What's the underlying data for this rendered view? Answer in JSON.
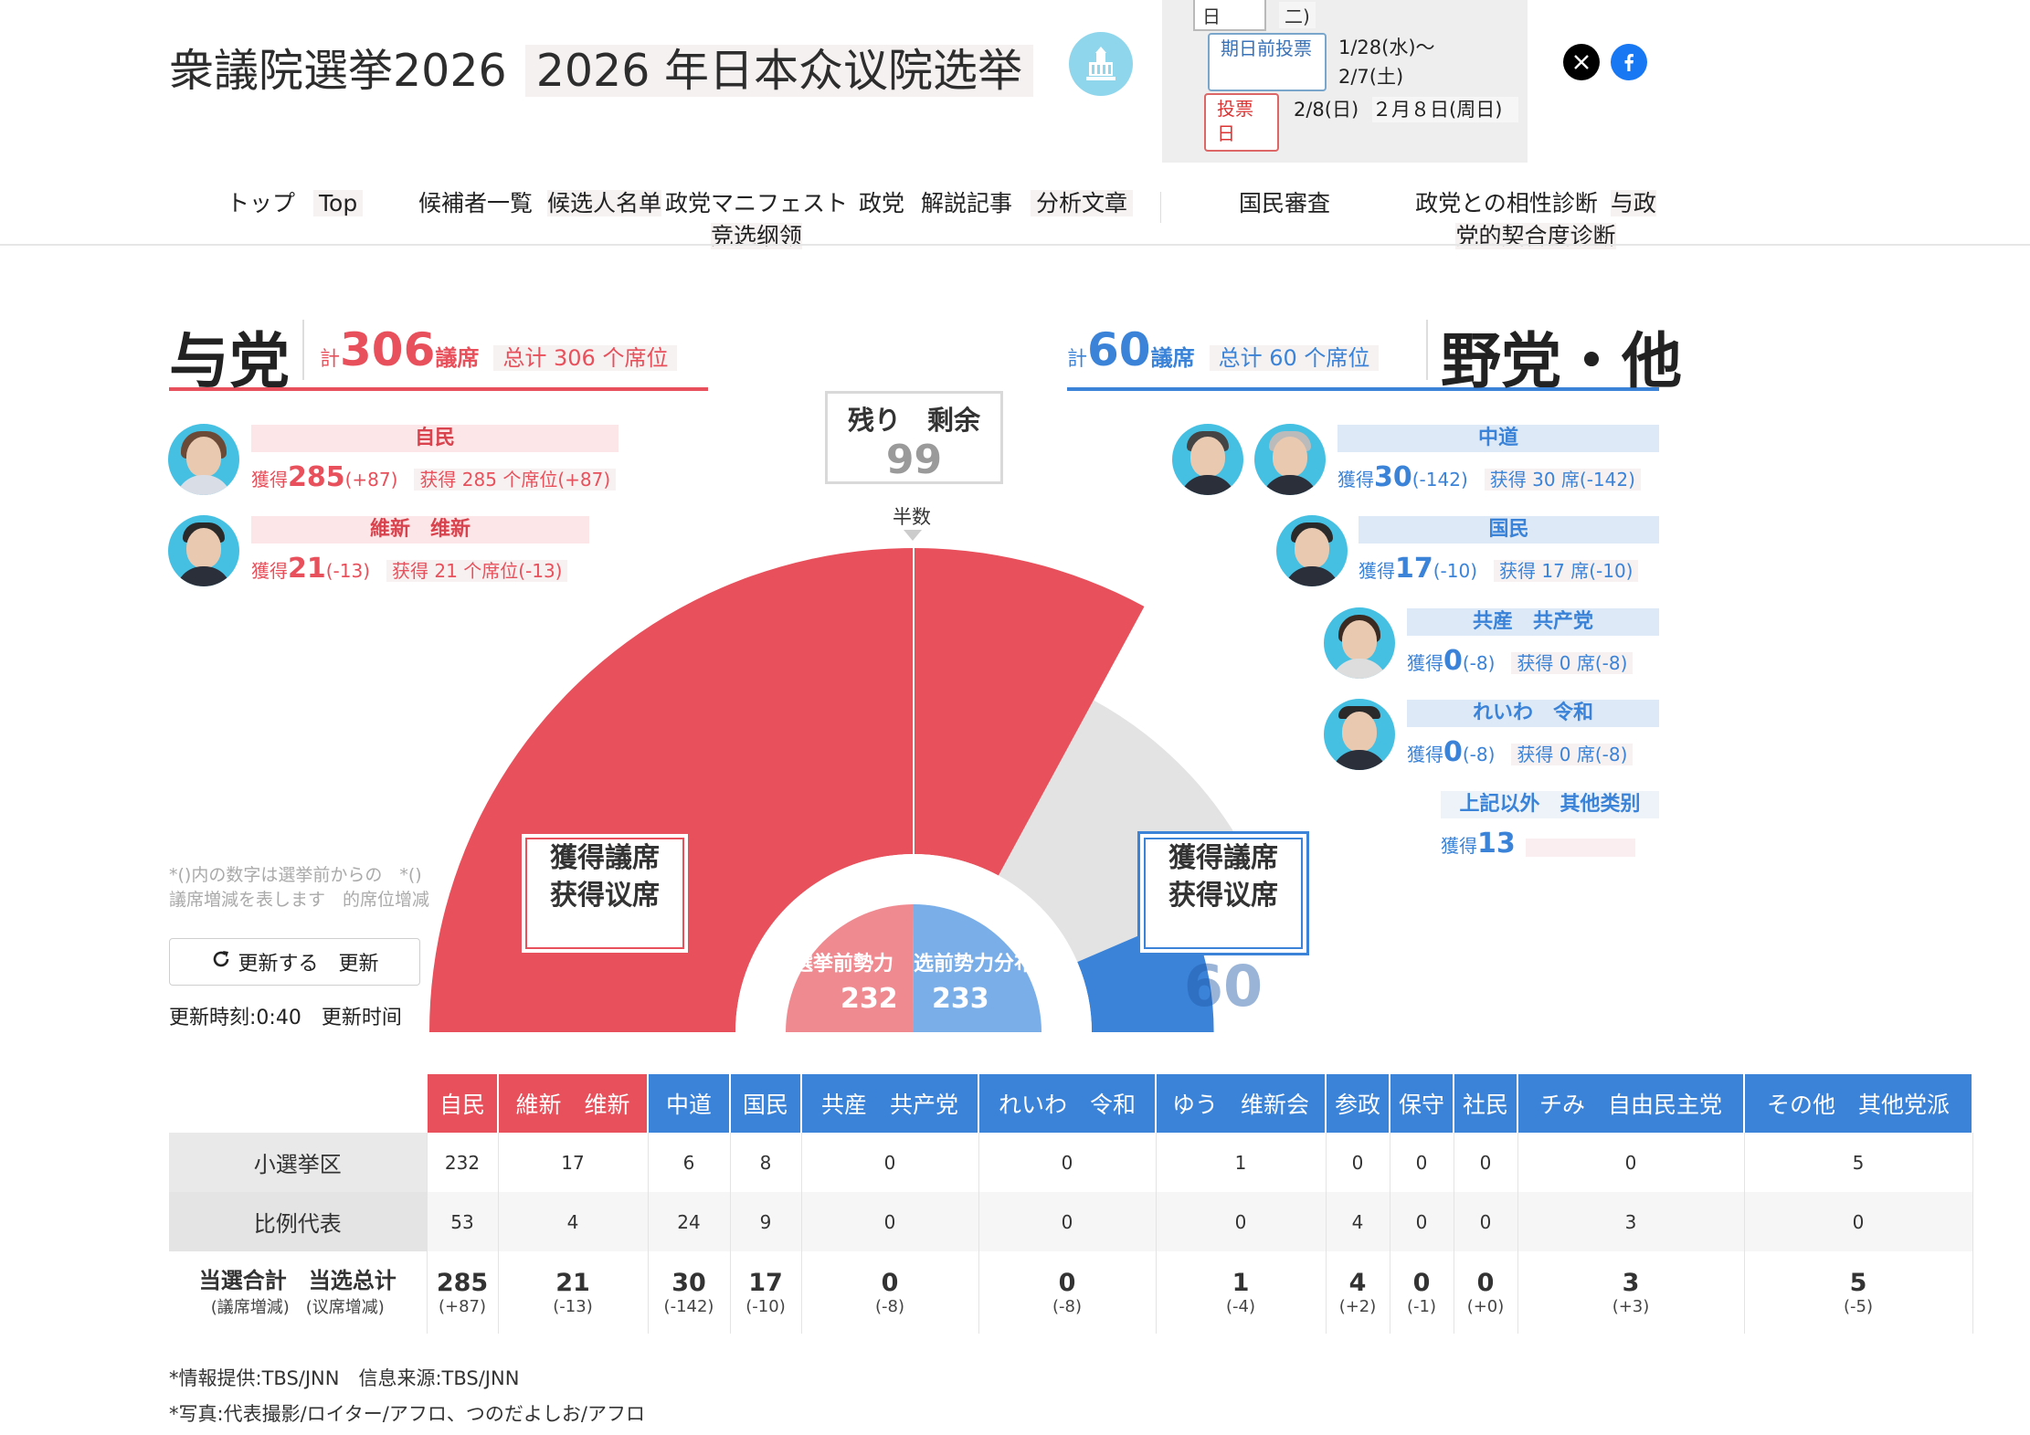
{
  "header": {
    "title_ja": "衆議院選挙2026",
    "title_cn": "2026 年日本众议院选举",
    "icon": "diet-building-icon"
  },
  "schedule": {
    "cut_top_left": "日",
    "cut_top_right": "二)",
    "early_vote_label": "期日前投票",
    "early_vote_dates": [
      "1/28(水)〜",
      "2/7(土)"
    ],
    "vote_day_label": "投票日",
    "vote_day_date": "2/8(日)",
    "vote_day_cn": "２月８日(周日)"
  },
  "social": [
    "x-icon",
    "facebook-icon"
  ],
  "nav": {
    "items": [
      {
        "ja": "トップ",
        "cn": "Top"
      },
      {
        "ja": "候補者一覧",
        "cn": "候选人名单"
      },
      {
        "ja": "政党マニフェスト",
        "cn": "竞选纲领"
      },
      {
        "ja": "政党",
        "cn": ""
      },
      {
        "ja": "解説記事",
        "cn": "分析文章"
      },
      {
        "ja": "国民審査",
        "cn": ""
      },
      {
        "ja": "政党との相性診断",
        "cn": "与政党的契合度诊断"
      }
    ]
  },
  "ruling": {
    "title": "与党",
    "total_prefix": "計",
    "total": "306",
    "total_suffix": "議席",
    "total_cn": "总计 306 个席位",
    "parties": [
      {
        "name": "自民",
        "gain_prefix": "獲得",
        "gain": "285",
        "delta": "(+87)",
        "gain_cn": "获得 285 个席位(+87)"
      },
      {
        "name": "維新　维新",
        "gain_prefix": "獲得",
        "gain": "21",
        "delta": "(-13)",
        "gain_cn": "获得 21 个席位(-13)"
      }
    ]
  },
  "opposition": {
    "title": "野党・他",
    "total_prefix": "計",
    "total": "60",
    "total_suffix": "議席",
    "total_cn": "总计 60 个席位",
    "parties": [
      {
        "name": "中道",
        "gain_prefix": "獲得",
        "gain": "30",
        "delta": "(-142)",
        "gain_cn": "获得 30 席(-142)"
      },
      {
        "name": "国民",
        "gain_prefix": "獲得",
        "gain": "17",
        "delta": "(-10)",
        "gain_cn": "获得 17 席(-10)"
      },
      {
        "name": "共産　共产党",
        "gain_prefix": "獲得",
        "gain": "0",
        "delta": "(-8)",
        "gain_cn": "获得 0 席(-8)"
      },
      {
        "name": "れいわ　令和",
        "gain_prefix": "獲得",
        "gain": "0",
        "delta": "(-8)",
        "gain_cn": "获得 0 席(-8)"
      }
    ],
    "others_label": "上記以外　其他类别",
    "others_prefix": "獲得",
    "others_gain": "13"
  },
  "gauge": {
    "remaining_label": "残り　剩余",
    "remaining": "99",
    "half_label": "半数",
    "ruling_label": "獲得議席　获得议席",
    "ruling_seats": "306",
    "opp_label": "獲得議席　获得议席",
    "opp_seats": "60",
    "pre_label": "選挙前勢力　选前势力分布",
    "pre_ruling": "232",
    "pre_opp": "233",
    "total_seats": 465,
    "colors": {
      "ruling": "#e8505b",
      "opposition": "#3a83d8",
      "remaining": "#e3e3e3"
    }
  },
  "notes": {
    "line1": "*()内の数字は選挙前からの　*()",
    "line2": "議席増減を表します　的席位增减"
  },
  "refresh": {
    "label": "更新する　更新",
    "time": "更新時刻:0:40　更新时间"
  },
  "table": {
    "headers": [
      {
        "label": "自民",
        "color": "r"
      },
      {
        "label": "維新　维新",
        "color": "r"
      },
      {
        "label": "中道",
        "color": "b"
      },
      {
        "label": "国民",
        "color": "b"
      },
      {
        "label": "共産　共产党",
        "color": "b"
      },
      {
        "label": "れいわ　令和",
        "color": "b"
      },
      {
        "label": "ゆう　维新会",
        "color": "b"
      },
      {
        "label": "参政",
        "color": "b"
      },
      {
        "label": "保守",
        "color": "b"
      },
      {
        "label": "社民",
        "color": "b"
      },
      {
        "label": "チみ　自由民主党",
        "color": "b"
      },
      {
        "label": "その他　其他党派",
        "color": "b"
      }
    ],
    "rows": [
      {
        "label": "小選挙区",
        "values": [
          "232",
          "17",
          "6",
          "8",
          "0",
          "0",
          "1",
          "0",
          "0",
          "0",
          "0",
          "5"
        ]
      },
      {
        "label": "比例代表",
        "values": [
          "53",
          "4",
          "24",
          "9",
          "0",
          "0",
          "0",
          "4",
          "0",
          "0",
          "3",
          "0"
        ]
      }
    ],
    "total_label": "当選合計　当选总计",
    "total_sublabel": "(議席増減)　(议席增减)",
    "totals": [
      {
        "n": "285",
        "d": "(+87)"
      },
      {
        "n": "21",
        "d": "(-13)"
      },
      {
        "n": "30",
        "d": "(-142)"
      },
      {
        "n": "17",
        "d": "(-10)"
      },
      {
        "n": "0",
        "d": "(-8)"
      },
      {
        "n": "0",
        "d": "(-8)"
      },
      {
        "n": "1",
        "d": "(-4)"
      },
      {
        "n": "4",
        "d": "(+2)"
      },
      {
        "n": "0",
        "d": "(-1)"
      },
      {
        "n": "0",
        "d": "(+0)"
      },
      {
        "n": "3",
        "d": "(+3)"
      },
      {
        "n": "5",
        "d": "(-5)"
      }
    ]
  },
  "footer": {
    "source": "*情報提供:TBS/JNN　信息来源:TBS/JNN",
    "photo": "*写真:代表撮影/ロイター/アフロ、つのだよしお/アフロ"
  }
}
